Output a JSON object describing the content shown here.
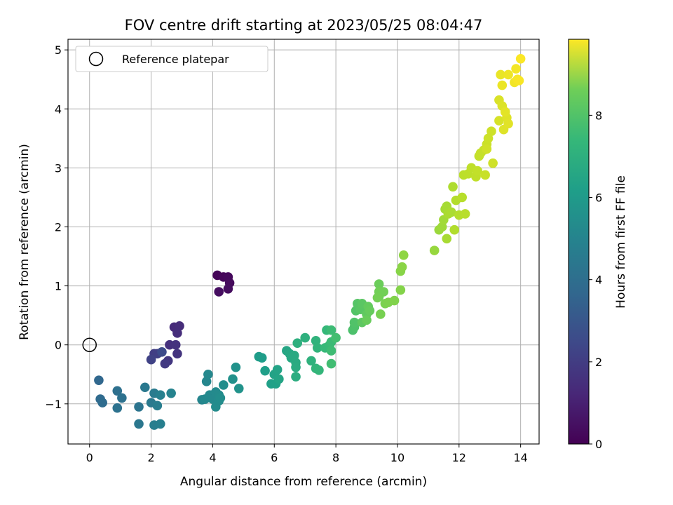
{
  "chart_data": {
    "type": "scatter",
    "title": "FOV centre drift starting at 2023/05/25 08:04:47",
    "xlabel": "Angular distance from reference (arcmin)",
    "ylabel": "Rotation from reference (arcmin)",
    "colorbar_label": "Hours from first FF file",
    "xlim": [
      -0.7,
      14.6
    ],
    "ylim": [
      -1.68,
      5.18
    ],
    "xticks": [
      "0",
      "2",
      "4",
      "6",
      "8",
      "10",
      "12",
      "14"
    ],
    "yticks": [
      "−1",
      "0",
      "1",
      "2",
      "3",
      "4",
      "5"
    ],
    "colorbar_range": [
      0,
      9.85
    ],
    "colorbar_ticks": [
      "0",
      "2",
      "4",
      "6",
      "8"
    ],
    "colormap": "viridis",
    "grid": true,
    "legend": {
      "position": "top-left",
      "label": "Reference platepar"
    },
    "reference_point": {
      "x": 0,
      "y": 0
    },
    "points": [
      {
        "x": 4.15,
        "y": 1.18,
        "t": 0.1
      },
      {
        "x": 4.35,
        "y": 1.15,
        "t": 0.15
      },
      {
        "x": 4.5,
        "y": 1.15,
        "t": 0.2
      },
      {
        "x": 4.55,
        "y": 1.05,
        "t": 0.25
      },
      {
        "x": 4.5,
        "y": 0.95,
        "t": 0.3
      },
      {
        "x": 4.2,
        "y": 0.9,
        "t": 0.35
      },
      {
        "x": 2.75,
        "y": 0.3,
        "t": 1.2
      },
      {
        "x": 2.92,
        "y": 0.32,
        "t": 1.25
      },
      {
        "x": 2.85,
        "y": 0.2,
        "t": 1.3
      },
      {
        "x": 2.6,
        "y": 0.0,
        "t": 1.4
      },
      {
        "x": 2.8,
        "y": 0.0,
        "t": 1.45
      },
      {
        "x": 2.85,
        "y": -0.15,
        "t": 1.5
      },
      {
        "x": 2.55,
        "y": -0.27,
        "t": 1.6
      },
      {
        "x": 2.45,
        "y": -0.32,
        "t": 1.7
      },
      {
        "x": 2.1,
        "y": -0.15,
        "t": 1.8
      },
      {
        "x": 2.2,
        "y": -0.15,
        "t": 1.85
      },
      {
        "x": 2.0,
        "y": -0.25,
        "t": 1.95
      },
      {
        "x": 2.35,
        "y": -0.12,
        "t": 2.3
      },
      {
        "x": 0.3,
        "y": -0.6,
        "t": 3.3
      },
      {
        "x": 0.35,
        "y": -0.92,
        "t": 3.4
      },
      {
        "x": 0.42,
        "y": -0.98,
        "t": 3.45
      },
      {
        "x": 0.9,
        "y": -0.78,
        "t": 3.6
      },
      {
        "x": 1.05,
        "y": -0.9,
        "t": 3.65
      },
      {
        "x": 0.9,
        "y": -1.07,
        "t": 3.7
      },
      {
        "x": 1.6,
        "y": -1.05,
        "t": 3.8
      },
      {
        "x": 1.6,
        "y": -1.34,
        "t": 3.9
      },
      {
        "x": 1.8,
        "y": -0.72,
        "t": 3.95
      },
      {
        "x": 2.0,
        "y": -0.98,
        "t": 4.0
      },
      {
        "x": 2.1,
        "y": -0.82,
        "t": 4.1
      },
      {
        "x": 2.2,
        "y": -1.03,
        "t": 4.15
      },
      {
        "x": 2.1,
        "y": -1.36,
        "t": 4.2
      },
      {
        "x": 2.3,
        "y": -1.34,
        "t": 4.25
      },
      {
        "x": 2.3,
        "y": -0.85,
        "t": 4.3
      },
      {
        "x": 2.65,
        "y": -0.82,
        "t": 4.4
      },
      {
        "x": 3.65,
        "y": -0.93,
        "t": 4.5
      },
      {
        "x": 3.8,
        "y": -0.62,
        "t": 4.55
      },
      {
        "x": 3.85,
        "y": -0.5,
        "t": 4.6
      },
      {
        "x": 3.75,
        "y": -0.92,
        "t": 4.62
      },
      {
        "x": 3.9,
        "y": -0.85,
        "t": 4.65
      },
      {
        "x": 4.0,
        "y": -0.92,
        "t": 4.67
      },
      {
        "x": 4.1,
        "y": -0.8,
        "t": 4.7
      },
      {
        "x": 4.2,
        "y": -0.85,
        "t": 4.72
      },
      {
        "x": 4.1,
        "y": -1.05,
        "t": 4.75
      },
      {
        "x": 4.2,
        "y": -0.95,
        "t": 4.77
      },
      {
        "x": 4.25,
        "y": -0.9,
        "t": 4.8
      },
      {
        "x": 4.35,
        "y": -0.68,
        "t": 4.85
      },
      {
        "x": 4.65,
        "y": -0.58,
        "t": 4.95
      },
      {
        "x": 4.75,
        "y": -0.38,
        "t": 5.0
      },
      {
        "x": 4.85,
        "y": -0.74,
        "t": 5.05
      },
      {
        "x": 5.5,
        "y": -0.2,
        "t": 5.4
      },
      {
        "x": 5.6,
        "y": -0.22,
        "t": 5.45
      },
      {
        "x": 5.7,
        "y": -0.44,
        "t": 5.5
      },
      {
        "x": 5.9,
        "y": -0.66,
        "t": 5.55
      },
      {
        "x": 6.05,
        "y": -0.66,
        "t": 5.6
      },
      {
        "x": 6.0,
        "y": -0.5,
        "t": 5.65
      },
      {
        "x": 6.1,
        "y": -0.42,
        "t": 5.7
      },
      {
        "x": 6.15,
        "y": -0.58,
        "t": 5.72
      },
      {
        "x": 6.4,
        "y": -0.1,
        "t": 5.8
      },
      {
        "x": 6.5,
        "y": -0.15,
        "t": 5.85
      },
      {
        "x": 6.55,
        "y": -0.22,
        "t": 5.9
      },
      {
        "x": 6.65,
        "y": -0.18,
        "t": 5.95
      },
      {
        "x": 6.7,
        "y": -0.3,
        "t": 6.0
      },
      {
        "x": 6.7,
        "y": -0.38,
        "t": 6.05
      },
      {
        "x": 6.7,
        "y": -0.54,
        "t": 6.1
      },
      {
        "x": 6.75,
        "y": 0.03,
        "t": 6.2
      },
      {
        "x": 7.0,
        "y": 0.12,
        "t": 6.25
      },
      {
        "x": 7.2,
        "y": -0.27,
        "t": 6.3
      },
      {
        "x": 7.35,
        "y": 0.07,
        "t": 6.35
      },
      {
        "x": 7.4,
        "y": -0.05,
        "t": 6.4
      },
      {
        "x": 7.35,
        "y": -0.4,
        "t": 6.45
      },
      {
        "x": 7.45,
        "y": -0.43,
        "t": 6.5
      },
      {
        "x": 7.7,
        "y": 0.25,
        "t": 6.55
      },
      {
        "x": 7.65,
        "y": -0.05,
        "t": 6.6
      },
      {
        "x": 7.8,
        "y": 0.0,
        "t": 6.65
      },
      {
        "x": 7.85,
        "y": 0.05,
        "t": 6.7
      },
      {
        "x": 7.85,
        "y": 0.25,
        "t": 6.72
      },
      {
        "x": 7.85,
        "y": -0.1,
        "t": 6.75
      },
      {
        "x": 7.85,
        "y": -0.32,
        "t": 6.8
      },
      {
        "x": 8.0,
        "y": 0.12,
        "t": 6.85
      },
      {
        "x": 8.55,
        "y": 0.25,
        "t": 7.0
      },
      {
        "x": 8.6,
        "y": 0.3,
        "t": 7.05
      },
      {
        "x": 8.6,
        "y": 0.38,
        "t": 7.1
      },
      {
        "x": 8.65,
        "y": 0.58,
        "t": 7.15
      },
      {
        "x": 8.7,
        "y": 0.7,
        "t": 7.2
      },
      {
        "x": 8.8,
        "y": 0.6,
        "t": 7.25
      },
      {
        "x": 8.85,
        "y": 0.7,
        "t": 7.3
      },
      {
        "x": 8.85,
        "y": 0.38,
        "t": 7.35
      },
      {
        "x": 9.0,
        "y": 0.52,
        "t": 7.4
      },
      {
        "x": 9.05,
        "y": 0.65,
        "t": 7.45
      },
      {
        "x": 9.1,
        "y": 0.58,
        "t": 7.5
      },
      {
        "x": 9.0,
        "y": 0.42,
        "t": 7.55
      },
      {
        "x": 9.4,
        "y": 1.03,
        "t": 7.6
      },
      {
        "x": 9.4,
        "y": 0.82,
        "t": 7.65
      },
      {
        "x": 9.4,
        "y": 0.9,
        "t": 7.7
      },
      {
        "x": 9.55,
        "y": 0.9,
        "t": 7.72
      },
      {
        "x": 9.35,
        "y": 0.8,
        "t": 7.75
      },
      {
        "x": 9.45,
        "y": 0.52,
        "t": 7.8
      },
      {
        "x": 9.6,
        "y": 0.7,
        "t": 7.85
      },
      {
        "x": 9.7,
        "y": 0.72,
        "t": 7.9
      },
      {
        "x": 9.9,
        "y": 0.75,
        "t": 7.95
      },
      {
        "x": 10.1,
        "y": 0.93,
        "t": 8.0
      },
      {
        "x": 10.1,
        "y": 1.25,
        "t": 8.05
      },
      {
        "x": 10.15,
        "y": 1.32,
        "t": 8.1
      },
      {
        "x": 10.2,
        "y": 1.52,
        "t": 8.15
      },
      {
        "x": 11.2,
        "y": 1.6,
        "t": 8.3
      },
      {
        "x": 11.35,
        "y": 1.95,
        "t": 8.35
      },
      {
        "x": 11.45,
        "y": 2.0,
        "t": 8.4
      },
      {
        "x": 11.5,
        "y": 2.12,
        "t": 8.45
      },
      {
        "x": 11.55,
        "y": 2.3,
        "t": 8.5
      },
      {
        "x": 11.6,
        "y": 2.35,
        "t": 8.52
      },
      {
        "x": 11.6,
        "y": 1.8,
        "t": 8.55
      },
      {
        "x": 11.65,
        "y": 2.22,
        "t": 8.58
      },
      {
        "x": 11.75,
        "y": 2.25,
        "t": 8.6
      },
      {
        "x": 11.8,
        "y": 2.68,
        "t": 8.65
      },
      {
        "x": 11.85,
        "y": 1.95,
        "t": 8.7
      },
      {
        "x": 11.9,
        "y": 2.45,
        "t": 8.72
      },
      {
        "x": 12.0,
        "y": 2.2,
        "t": 8.75
      },
      {
        "x": 12.1,
        "y": 2.5,
        "t": 8.78
      },
      {
        "x": 12.2,
        "y": 2.22,
        "t": 8.8
      },
      {
        "x": 12.15,
        "y": 2.88,
        "t": 8.85
      },
      {
        "x": 12.3,
        "y": 2.9,
        "t": 8.88
      },
      {
        "x": 12.4,
        "y": 3.0,
        "t": 8.9
      },
      {
        "x": 12.55,
        "y": 2.85,
        "t": 8.92
      },
      {
        "x": 12.6,
        "y": 2.95,
        "t": 8.95
      },
      {
        "x": 12.65,
        "y": 3.2,
        "t": 8.97
      },
      {
        "x": 12.7,
        "y": 3.25,
        "t": 9.0
      },
      {
        "x": 12.8,
        "y": 3.3,
        "t": 9.02
      },
      {
        "x": 12.85,
        "y": 2.88,
        "t": 9.05
      },
      {
        "x": 12.9,
        "y": 3.4,
        "t": 9.08
      },
      {
        "x": 12.95,
        "y": 3.5,
        "t": 9.1
      },
      {
        "x": 13.05,
        "y": 3.62,
        "t": 9.12
      },
      {
        "x": 13.1,
        "y": 3.08,
        "t": 9.15
      },
      {
        "x": 12.9,
        "y": 3.32,
        "t": 9.17
      },
      {
        "x": 13.3,
        "y": 3.8,
        "t": 9.25
      },
      {
        "x": 13.3,
        "y": 4.15,
        "t": 9.3
      },
      {
        "x": 13.4,
        "y": 4.05,
        "t": 9.35
      },
      {
        "x": 13.45,
        "y": 3.65,
        "t": 9.38
      },
      {
        "x": 13.55,
        "y": 3.85,
        "t": 9.4
      },
      {
        "x": 13.6,
        "y": 3.75,
        "t": 9.42
      },
      {
        "x": 13.5,
        "y": 3.95,
        "t": 9.45
      },
      {
        "x": 13.35,
        "y": 4.58,
        "t": 9.55
      },
      {
        "x": 13.4,
        "y": 4.4,
        "t": 9.58
      },
      {
        "x": 13.6,
        "y": 4.58,
        "t": 9.62
      },
      {
        "x": 13.8,
        "y": 4.45,
        "t": 9.66
      },
      {
        "x": 13.85,
        "y": 4.68,
        "t": 9.7
      },
      {
        "x": 13.9,
        "y": 4.5,
        "t": 9.74
      },
      {
        "x": 13.95,
        "y": 4.48,
        "t": 9.78
      },
      {
        "x": 14.0,
        "y": 4.85,
        "t": 9.82
      }
    ]
  }
}
